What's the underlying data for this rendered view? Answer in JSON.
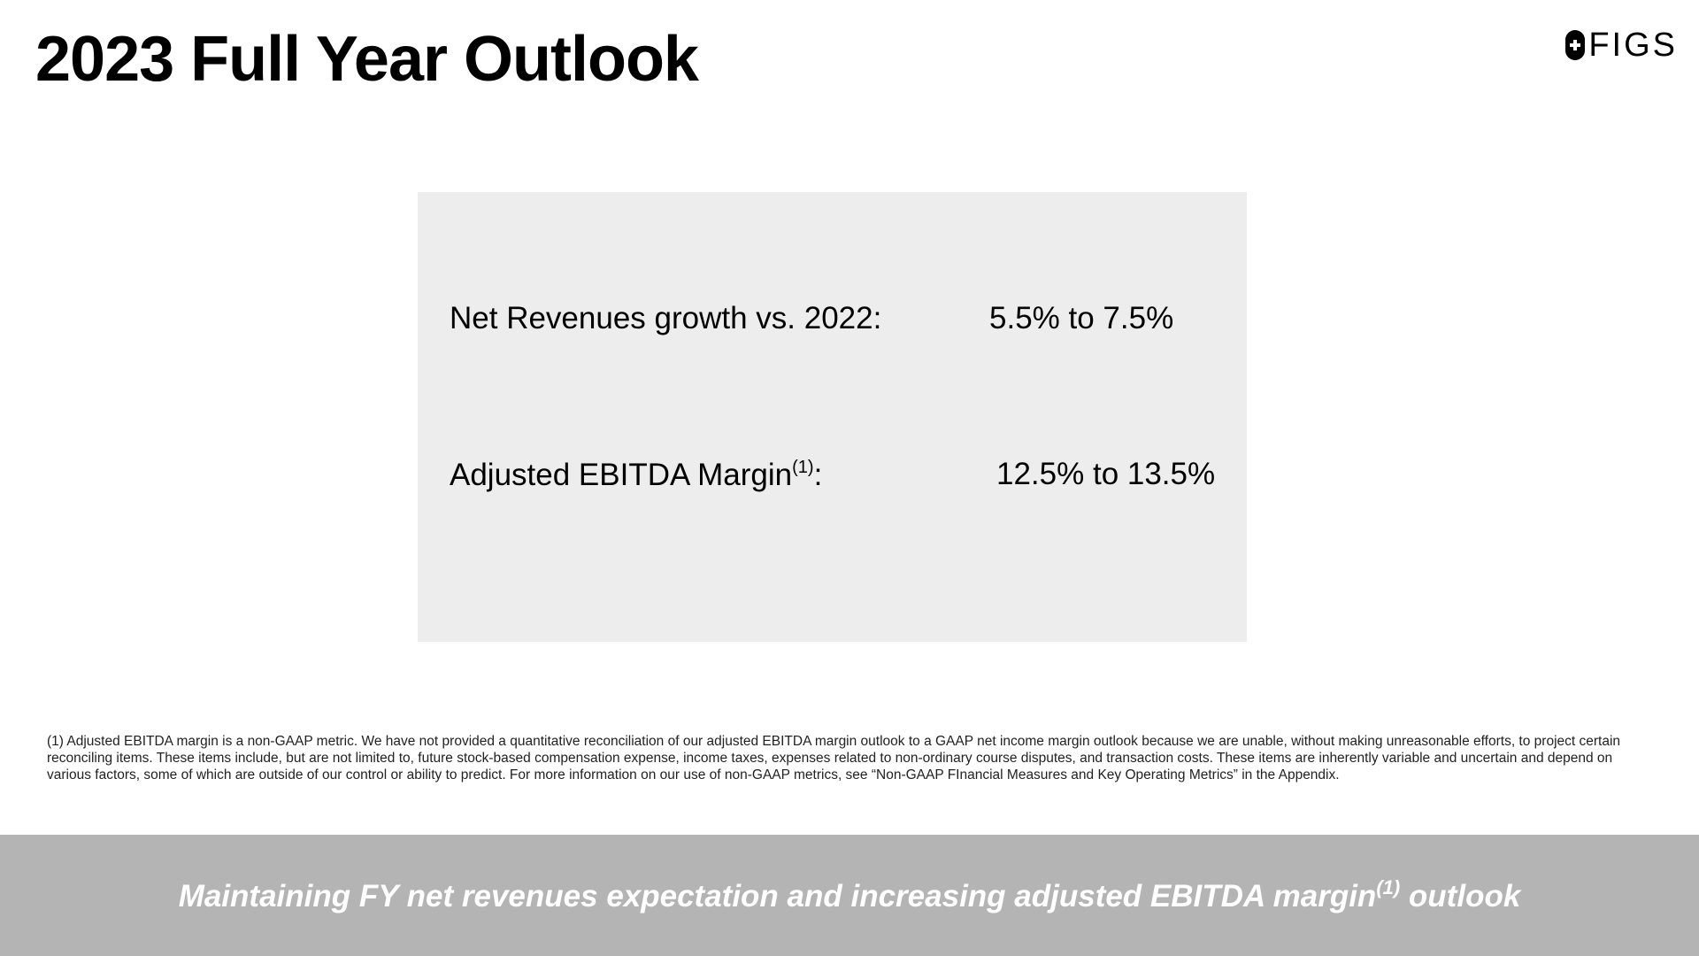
{
  "slide": {
    "title": "2023 Full Year Outlook",
    "logo": {
      "icon": "figs-plus-icon",
      "text": "FIGS"
    },
    "outlook": {
      "rows": [
        {
          "label": "Net Revenues growth vs. 2022:",
          "footnote_ref": "",
          "suffix": "",
          "value": "5.5% to 7.5%"
        },
        {
          "label": "Adjusted EBITDA Margin",
          "footnote_ref": "(1)",
          "suffix": ":",
          "value": "12.5% to 13.5%"
        }
      ]
    },
    "footnote": "(1) Adjusted EBITDA margin is a non-GAAP metric.  We have not provided a quantitative reconciliation of our adjusted EBITDA margin outlook to a GAAP net income margin outlook because we are unable, without making unreasonable efforts, to project certain reconciling items. These items include, but are not limited to, future stock-based compensation expense, income taxes, expenses related to non-ordinary course disputes, and transaction costs. These items are inherently variable and uncertain and depend on various factors, some of which are outside of our control or ability to predict. For more information on our use of non-GAAP metrics, see “Non-GAAP FInancial Measures and Key Operating Metrics” in the Appendix.",
    "banner": {
      "text_before": "Maintaining FY net revenues expectation and increasing adjusted EBITDA margin",
      "footnote_ref": "(1)",
      "text_after": " outlook"
    }
  },
  "colors": {
    "outlook_box": "#ededed",
    "banner": "#b4b4b4",
    "banner_text": "#ffffff"
  }
}
